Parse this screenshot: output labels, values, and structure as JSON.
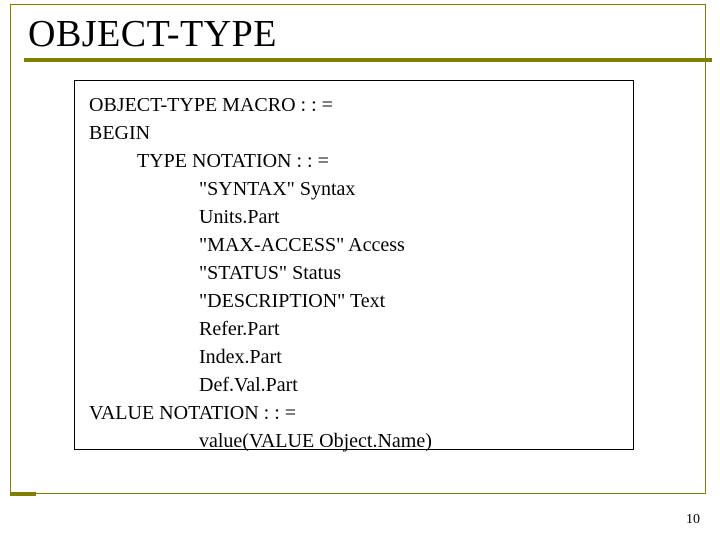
{
  "title": "OBJECT-TYPE",
  "code": {
    "l1": "OBJECT-TYPE MACRO : : =",
    "l2": "BEGIN",
    "l3": "TYPE NOTATION : : =",
    "l4": "\"SYNTAX\" Syntax",
    "l5": "Units.Part",
    "l6": "\"MAX-ACCESS\" Access",
    "l7": "\"STATUS\" Status",
    "l8": "\"DESCRIPTION\" Text",
    "l9": "Refer.Part",
    "l10": "Index.Part",
    "l11": "Def.Val.Part",
    "l12": "VALUE NOTATION : : =",
    "l13": "value(VALUE Object.Name)"
  },
  "page_number": "10",
  "colors": {
    "accent": "#808000",
    "text": "#000000",
    "bg": "#ffffff"
  }
}
